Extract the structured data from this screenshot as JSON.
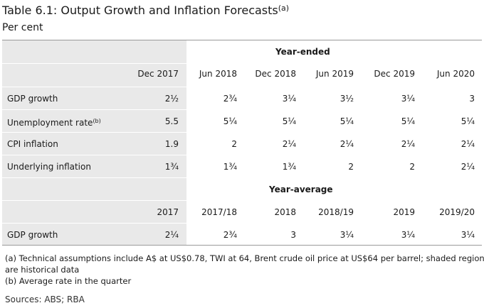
{
  "title": "Table 6.1: Output Growth and Inflation Forecasts",
  "title_note": "(a)",
  "subtitle": "Per cent",
  "section1": {
    "heading": "Year-ended",
    "columns": [
      "Dec 2017",
      "Jun 2018",
      "Dec 2018",
      "Jun 2019",
      "Dec 2019",
      "Jun 2020"
    ],
    "rows": [
      {
        "label": "GDP growth",
        "note": "",
        "values": [
          "2½",
          "2¾",
          "3¼",
          "3½",
          "3¼",
          "3"
        ]
      },
      {
        "label": "Unemployment rate",
        "note": "(b)",
        "values": [
          "5.5",
          "5¼",
          "5¼",
          "5¼",
          "5¼",
          "5¼"
        ]
      },
      {
        "label": "CPI inflation",
        "note": "",
        "values": [
          "1.9",
          "2",
          "2¼",
          "2¼",
          "2¼",
          "2¼"
        ]
      },
      {
        "label": "Underlying inflation",
        "note": "",
        "values": [
          "1¾",
          "1¾",
          "1¾",
          "2",
          "2",
          "2¼"
        ]
      }
    ]
  },
  "section2": {
    "heading": "Year-average",
    "columns": [
      "2017",
      "2017/18",
      "2018",
      "2018/19",
      "2019",
      "2019/20"
    ],
    "rows": [
      {
        "label": "GDP growth",
        "values": [
          "2¼",
          "2¾",
          "3",
          "3¼",
          "3¼",
          "3¼"
        ]
      }
    ]
  },
  "footnotes": [
    "(a) Technical assumptions include A$ at US$0.78, TWI at 64, Brent crude oil price at US$64 per barrel; shaded regions",
    "are historical data",
    "(b) Average rate in the quarter"
  ],
  "sources": "Sources: ABS; RBA",
  "colors": {
    "shade": "#e9e9e9",
    "rule": "#ffffff",
    "border": "#9a9a9a"
  }
}
